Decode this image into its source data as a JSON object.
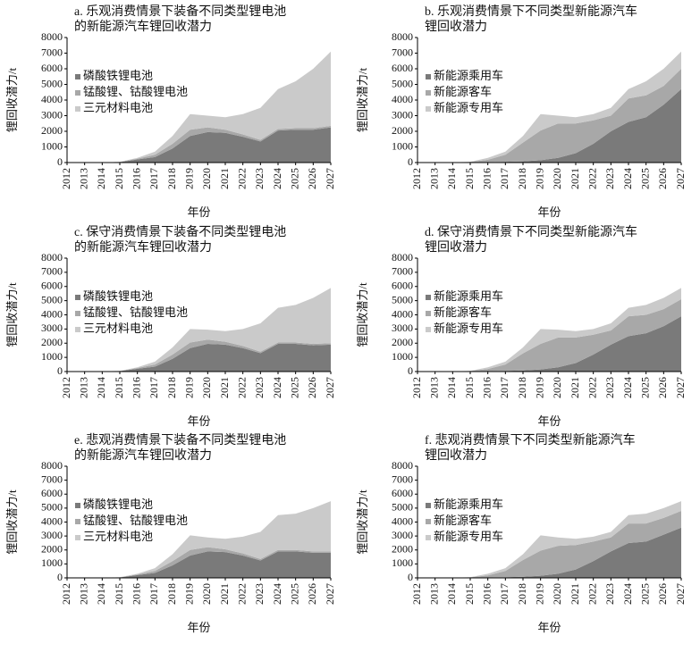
{
  "chart_data": [
    {
      "type": "area",
      "title": [
        "a. 乐观消费情景下装备不同类型锂电池",
        "的新能源汽车锂回收潜力"
      ],
      "x": [
        2012,
        2013,
        2014,
        2015,
        2016,
        2017,
        2018,
        2019,
        2020,
        2021,
        2022,
        2023,
        2024,
        2025,
        2026,
        2027
      ],
      "xlim": [
        2012,
        2027
      ],
      "ylim": [
        0,
        8000
      ],
      "yticks": [
        0,
        1000,
        2000,
        3000,
        4000,
        5000,
        6000,
        7000,
        8000
      ],
      "x_label": "年份",
      "y_label": "锂回收潜力/t",
      "stacked": true,
      "legend": "upper-left",
      "series": [
        {
          "name": "磷酸铁锂电池",
          "color": "#7a7a7a",
          "values": [
            0,
            0,
            5,
            30,
            200,
            350,
            900,
            1700,
            1950,
            1900,
            1650,
            1350,
            2050,
            2100,
            2100,
            2250
          ]
        },
        {
          "name": "锰酸锂、钴酸锂电池",
          "color": "#a8a8a8",
          "values": [
            0,
            0,
            3,
            10,
            50,
            150,
            300,
            400,
            300,
            200,
            150,
            100,
            100,
            100,
            100,
            100
          ]
        },
        {
          "name": "三元材料电池",
          "color": "#cacaca",
          "values": [
            0,
            0,
            2,
            10,
            50,
            200,
            500,
            1000,
            750,
            800,
            1300,
            2050,
            2550,
            3000,
            3800,
            4750
          ]
        }
      ]
    },
    {
      "type": "area",
      "title": [
        "b. 乐观消费情景下不同类型新能源汽车",
        "锂回收潜力"
      ],
      "x": [
        2012,
        2013,
        2014,
        2015,
        2016,
        2017,
        2018,
        2019,
        2020,
        2021,
        2022,
        2023,
        2024,
        2025,
        2026,
        2027
      ],
      "xlim": [
        2012,
        2027
      ],
      "ylim": [
        0,
        8000
      ],
      "yticks": [
        0,
        1000,
        2000,
        3000,
        4000,
        5000,
        6000,
        7000,
        8000
      ],
      "x_label": "年份",
      "y_label": "锂回收潜力/t",
      "stacked": true,
      "legend": "upper-left",
      "series": [
        {
          "name": "新能源乘用车",
          "color": "#7a7a7a",
          "values": [
            0,
            0,
            0,
            10,
            30,
            50,
            80,
            150,
            300,
            600,
            1200,
            2000,
            2600,
            2900,
            3700,
            4700
          ]
        },
        {
          "name": "新能源客车",
          "color": "#a8a8a8",
          "values": [
            0,
            0,
            5,
            30,
            150,
            450,
            1200,
            1900,
            2200,
            1900,
            1500,
            1000,
            1500,
            1400,
            1200,
            1300
          ]
        },
        {
          "name": "新能源专用车",
          "color": "#cacaca",
          "values": [
            0,
            0,
            5,
            10,
            120,
            200,
            420,
            1050,
            500,
            400,
            400,
            500,
            600,
            900,
            1100,
            1100
          ]
        }
      ]
    },
    {
      "type": "area",
      "title": [
        "c. 保守消费情景下装备不同类型锂电池",
        "的新能源汽车锂回收潜力"
      ],
      "x": [
        2012,
        2013,
        2014,
        2015,
        2016,
        2017,
        2018,
        2019,
        2020,
        2021,
        2022,
        2023,
        2024,
        2025,
        2026,
        2027
      ],
      "xlim": [
        2012,
        2027
      ],
      "ylim": [
        0,
        8000
      ],
      "yticks": [
        0,
        1000,
        2000,
        3000,
        4000,
        5000,
        6000,
        7000,
        8000
      ],
      "x_label": "年份",
      "y_label": "锂回收潜力/t",
      "stacked": true,
      "legend": "upper-left",
      "series": [
        {
          "name": "磷酸铁锂电池",
          "color": "#7a7a7a",
          "values": [
            0,
            0,
            5,
            30,
            200,
            350,
            900,
            1650,
            1950,
            1900,
            1650,
            1300,
            1950,
            1950,
            1850,
            1900
          ]
        },
        {
          "name": "锰酸锂、钴酸锂电池",
          "color": "#a8a8a8",
          "values": [
            0,
            0,
            3,
            10,
            50,
            150,
            300,
            400,
            300,
            200,
            150,
            100,
            100,
            100,
            100,
            100
          ]
        },
        {
          "name": "三元材料电池",
          "color": "#cacaca",
          "values": [
            0,
            0,
            2,
            10,
            50,
            200,
            500,
            950,
            700,
            750,
            1200,
            2000,
            2450,
            2650,
            3250,
            3900
          ]
        }
      ]
    },
    {
      "type": "area",
      "title": [
        "d. 保守消费情景下不同类型新能源汽车",
        "锂回收潜力"
      ],
      "x": [
        2012,
        2013,
        2014,
        2015,
        2016,
        2017,
        2018,
        2019,
        2020,
        2021,
        2022,
        2023,
        2024,
        2025,
        2026,
        2027
      ],
      "xlim": [
        2012,
        2027
      ],
      "ylim": [
        0,
        8000
      ],
      "yticks": [
        0,
        1000,
        2000,
        3000,
        4000,
        5000,
        6000,
        7000,
        8000
      ],
      "x_label": "年份",
      "y_label": "锂回收潜力/t",
      "stacked": true,
      "legend": "upper-left",
      "series": [
        {
          "name": "新能源乘用车",
          "color": "#7a7a7a",
          "values": [
            0,
            0,
            0,
            10,
            30,
            50,
            80,
            150,
            300,
            600,
            1200,
            1900,
            2500,
            2700,
            3200,
            3900
          ]
        },
        {
          "name": "新能源客车",
          "color": "#a8a8a8",
          "values": [
            0,
            0,
            5,
            30,
            150,
            450,
            1200,
            1800,
            2100,
            1800,
            1400,
            1000,
            1400,
            1300,
            1200,
            1200
          ]
        },
        {
          "name": "新能源专用车",
          "color": "#cacaca",
          "values": [
            0,
            0,
            5,
            10,
            120,
            200,
            420,
            1050,
            550,
            450,
            400,
            500,
            600,
            700,
            800,
            800
          ]
        }
      ]
    },
    {
      "type": "area",
      "title": [
        "e. 悲观消费情景下装备不同类型锂电池",
        "的新能源汽车锂回收潜力"
      ],
      "x": [
        2012,
        2013,
        2014,
        2015,
        2016,
        2017,
        2018,
        2019,
        2020,
        2021,
        2022,
        2023,
        2024,
        2025,
        2026,
        2027
      ],
      "xlim": [
        2012,
        2027
      ],
      "ylim": [
        0,
        8000
      ],
      "yticks": [
        0,
        1000,
        2000,
        3000,
        4000,
        5000,
        6000,
        7000,
        8000
      ],
      "x_label": "年份",
      "y_label": "锂回收潜力/t",
      "stacked": true,
      "legend": "upper-left",
      "series": [
        {
          "name": "磷酸铁锂电池",
          "color": "#7a7a7a",
          "values": [
            0,
            0,
            5,
            30,
            200,
            350,
            900,
            1600,
            1900,
            1850,
            1600,
            1250,
            1900,
            1900,
            1800,
            1800
          ]
        },
        {
          "name": "锰酸锂、钴酸锂电池",
          "color": "#a8a8a8",
          "values": [
            0,
            0,
            3,
            10,
            50,
            150,
            300,
            400,
            300,
            200,
            150,
            100,
            100,
            100,
            100,
            100
          ]
        },
        {
          "name": "三元材料电池",
          "color": "#cacaca",
          "values": [
            0,
            0,
            2,
            10,
            50,
            200,
            500,
            1050,
            700,
            750,
            1200,
            1950,
            2500,
            2600,
            3100,
            3600
          ]
        }
      ]
    },
    {
      "type": "area",
      "title": [
        "f. 悲观消费情景下不同类型新能源汽车",
        "锂回收潜力"
      ],
      "x": [
        2012,
        2013,
        2014,
        2015,
        2016,
        2017,
        2018,
        2019,
        2020,
        2021,
        2022,
        2023,
        2024,
        2025,
        2026,
        2027
      ],
      "xlim": [
        2012,
        2027
      ],
      "ylim": [
        0,
        8000
      ],
      "yticks": [
        0,
        1000,
        2000,
        3000,
        4000,
        5000,
        6000,
        7000,
        8000
      ],
      "x_label": "年份",
      "y_label": "锂回收潜力/t",
      "stacked": true,
      "legend": "upper-left",
      "series": [
        {
          "name": "新能源乘用车",
          "color": "#7a7a7a",
          "values": [
            0,
            0,
            0,
            10,
            30,
            50,
            80,
            150,
            300,
            600,
            1200,
            1900,
            2500,
            2600,
            3100,
            3600
          ]
        },
        {
          "name": "新能源客车",
          "color": "#a8a8a8",
          "values": [
            0,
            0,
            5,
            30,
            150,
            450,
            1200,
            1800,
            2000,
            1750,
            1400,
            1000,
            1400,
            1300,
            1200,
            1200
          ]
        },
        {
          "name": "新能源专用车",
          "color": "#cacaca",
          "values": [
            0,
            0,
            5,
            10,
            120,
            200,
            420,
            1100,
            600,
            450,
            350,
            400,
            600,
            700,
            700,
            700
          ]
        }
      ]
    }
  ]
}
